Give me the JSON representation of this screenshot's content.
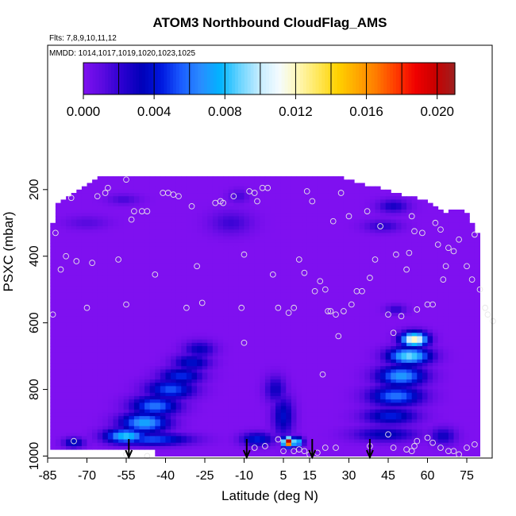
{
  "chart_data": {
    "type": "heatmap",
    "title": "ATOM3 Northbound CloudFlag_AMS",
    "subtitle_flights": "Flts: 7,8,9,10,11,12",
    "subtitle_dates": "MMDD: 1014,1017,1019,1020,1023,1025",
    "xlabel": "Latitude (deg N)",
    "ylabel": "PSXC (mbar)",
    "xlim": [
      -85,
      85
    ],
    "ylim": [
      1000,
      100
    ],
    "y_reversed": true,
    "x_ticks": [
      -85,
      -70,
      -55,
      -40,
      -25,
      -10,
      5,
      15,
      30,
      45,
      60,
      75
    ],
    "y_ticks": [
      200,
      400,
      600,
      800,
      1000
    ],
    "colorbar": {
      "range": [
        0.0,
        0.021
      ],
      "tick_values": [
        0.0,
        0.004,
        0.008,
        0.012,
        0.016,
        0.02
      ],
      "tick_labels": [
        "0.000",
        "0.004",
        "0.008",
        "0.012",
        "0.016",
        "0.020"
      ],
      "colors": [
        "#7f10f0",
        "#5a0ae0",
        "#2a00d0",
        "#0000b8",
        "#0018e0",
        "#1a5cff",
        "#2a8cff",
        "#00b4ff",
        "#6ad4ff",
        "#c4ecff",
        "#f4fbff",
        "#fff7b4",
        "#ffe75a",
        "#ffd200",
        "#ffa800",
        "#ff7a00",
        "#ff3a00",
        "#f00000",
        "#c80000",
        "#9e1f1f"
      ]
    },
    "background_value": 0.0,
    "coverage_columns": [
      {
        "lat": -84,
        "top": 330,
        "bottom": 575
      },
      {
        "lat": -81,
        "top": 240,
        "bottom": 575
      },
      {
        "lat": -76,
        "top": 220,
        "bottom": 575
      },
      {
        "lat": -66,
        "top": 165,
        "bottom": 575
      },
      {
        "lat": -40,
        "top": 165,
        "bottom": 575
      },
      {
        "lat": 0,
        "top": 165,
        "bottom": 975
      },
      {
        "lat": 18,
        "top": 165,
        "bottom": 975
      },
      {
        "lat": 28,
        "top": 165,
        "bottom": 975
      },
      {
        "lat": 52,
        "top": 220,
        "bottom": 975
      },
      {
        "lat": 60,
        "top": 230,
        "bottom": 975
      },
      {
        "lat": 66,
        "top": 270,
        "bottom": 975
      },
      {
        "lat": 74,
        "top": 255,
        "bottom": 975
      },
      {
        "lat": 80,
        "top": 345,
        "bottom": 975
      }
    ],
    "missing_region": {
      "lat_from": -84,
      "lat_to": -44,
      "pmin": 980,
      "pmax": 1000
    },
    "cloud_blobs": [
      {
        "lat": -55,
        "p": 940,
        "dlat": 8,
        "dp": 22,
        "value": 0.0085
      },
      {
        "lat": -48,
        "p": 900,
        "dlat": 9,
        "dp": 30,
        "value": 0.0075
      },
      {
        "lat": -44,
        "p": 850,
        "dlat": 9,
        "dp": 30,
        "value": 0.0062
      },
      {
        "lat": -38,
        "p": 800,
        "dlat": 9,
        "dp": 30,
        "value": 0.0055
      },
      {
        "lat": -34,
        "p": 760,
        "dlat": 8,
        "dp": 25,
        "value": 0.0048
      },
      {
        "lat": -30,
        "p": 720,
        "dlat": 7,
        "dp": 25,
        "value": 0.004
      },
      {
        "lat": -27,
        "p": 680,
        "dlat": 6,
        "dp": 25,
        "value": 0.0032
      },
      {
        "lat": -45,
        "p": 950,
        "dlat": 14,
        "dp": 18,
        "value": 0.0055
      },
      {
        "lat": -75,
        "p": 960,
        "dlat": 4,
        "dp": 15,
        "value": 0.004
      },
      {
        "lat": -5,
        "p": 950,
        "dlat": 6,
        "dp": 20,
        "value": 0.0045
      },
      {
        "lat": 5,
        "p": 880,
        "dlat": 4,
        "dp": 60,
        "value": 0.0038
      },
      {
        "lat": 2,
        "p": 800,
        "dlat": 4,
        "dp": 40,
        "value": 0.003
      },
      {
        "lat": 7,
        "p": 958,
        "dlat": 2.2,
        "dp": 14,
        "value": 0.021
      },
      {
        "lat": 10,
        "p": 958,
        "dlat": 2.5,
        "dp": 14,
        "value": 0.009
      },
      {
        "lat": 55,
        "p": 650,
        "dlat": 5,
        "dp": 22,
        "value": 0.0125
      },
      {
        "lat": 53,
        "p": 700,
        "dlat": 8,
        "dp": 25,
        "value": 0.0092
      },
      {
        "lat": 50,
        "p": 760,
        "dlat": 9,
        "dp": 30,
        "value": 0.0072
      },
      {
        "lat": 48,
        "p": 820,
        "dlat": 10,
        "dp": 30,
        "value": 0.0062
      },
      {
        "lat": 46,
        "p": 880,
        "dlat": 10,
        "dp": 25,
        "value": 0.0045
      },
      {
        "lat": 44,
        "p": 935,
        "dlat": 12,
        "dp": 22,
        "value": 0.0035
      },
      {
        "lat": 66,
        "p": 940,
        "dlat": 5,
        "dp": 25,
        "value": 0.003
      },
      {
        "lat": 48,
        "p": 560,
        "dlat": 4,
        "dp": 15,
        "value": 0.0022
      },
      {
        "lat": 47,
        "p": 250,
        "dlat": 6,
        "dp": 20,
        "value": 0.0028
      },
      {
        "lat": 43,
        "p": 310,
        "dlat": 7,
        "dp": 18,
        "value": 0.0022
      },
      {
        "lat": -15,
        "p": 300,
        "dlat": 8,
        "dp": 35,
        "value": 0.0018
      },
      {
        "lat": -12,
        "p": 220,
        "dlat": 4,
        "dp": 20,
        "value": 0.0016
      },
      {
        "lat": -56,
        "p": 230,
        "dlat": 6,
        "dp": 15,
        "value": 0.0016
      },
      {
        "lat": -70,
        "p": 300,
        "dlat": 8,
        "dp": 20,
        "value": 0.0012
      }
    ],
    "sample_points": [
      [
        -82,
        330
      ],
      [
        -80,
        440
      ],
      [
        -78,
        400
      ],
      [
        -76,
        225
      ],
      [
        -74,
        415
      ],
      [
        -70,
        555
      ],
      [
        -68,
        420
      ],
      [
        -66,
        220
      ],
      [
        -63,
        210
      ],
      [
        -62,
        195
      ],
      [
        -58,
        410
      ],
      [
        -55,
        170
      ],
      [
        -55,
        545
      ],
      [
        -53,
        290
      ],
      [
        -52,
        265
      ],
      [
        -49,
        265
      ],
      [
        -47,
        265
      ],
      [
        -44,
        455
      ],
      [
        -41,
        210
      ],
      [
        -39,
        210
      ],
      [
        -37,
        215
      ],
      [
        -35,
        220
      ],
      [
        -32,
        555
      ],
      [
        -30,
        250
      ],
      [
        -28,
        430
      ],
      [
        -26,
        540
      ],
      [
        -21,
        240
      ],
      [
        -19,
        235
      ],
      [
        -18,
        240
      ],
      [
        -14,
        220
      ],
      [
        -11,
        555
      ],
      [
        -10,
        395
      ],
      [
        -8,
        205
      ],
      [
        -6,
        210
      ],
      [
        -5,
        235
      ],
      [
        -3,
        195
      ],
      [
        -1,
        195
      ],
      [
        1,
        455
      ],
      [
        3,
        555
      ],
      [
        7,
        570
      ],
      [
        9,
        555
      ],
      [
        11,
        410
      ],
      [
        13,
        450
      ],
      [
        14,
        205
      ],
      [
        16,
        235
      ],
      [
        17,
        505
      ],
      [
        19,
        475
      ],
      [
        20,
        755
      ],
      [
        21,
        500
      ],
      [
        22,
        565
      ],
      [
        23,
        565
      ],
      [
        24,
        295
      ],
      [
        25,
        575
      ],
      [
        26,
        640
      ],
      [
        27,
        210
      ],
      [
        28,
        565
      ],
      [
        30,
        280
      ],
      [
        31,
        545
      ],
      [
        33,
        505
      ],
      [
        35,
        505
      ],
      [
        37,
        265
      ],
      [
        38,
        465
      ],
      [
        40,
        410
      ],
      [
        42,
        310
      ],
      [
        45,
        575
      ],
      [
        47,
        630
      ],
      [
        48,
        395
      ],
      [
        50,
        580
      ],
      [
        52,
        440
      ],
      [
        53,
        390
      ],
      [
        54,
        280
      ],
      [
        55,
        325
      ],
      [
        56,
        560
      ],
      [
        58,
        330
      ],
      [
        60,
        545
      ],
      [
        62,
        545
      ],
      [
        63,
        300
      ],
      [
        64,
        365
      ],
      [
        65,
        320
      ],
      [
        66,
        470
      ],
      [
        67,
        430
      ],
      [
        68,
        375
      ],
      [
        70,
        385
      ],
      [
        72,
        350
      ],
      [
        75,
        430
      ],
      [
        77,
        470
      ],
      [
        78,
        335
      ],
      [
        80,
        500
      ],
      [
        82,
        555
      ],
      [
        83,
        575
      ],
      [
        85,
        595
      ],
      [
        -83,
        575
      ],
      [
        -75,
        955
      ],
      [
        -6,
        975
      ],
      [
        -2,
        970
      ],
      [
        5,
        985
      ],
      [
        9,
        985
      ],
      [
        11,
        980
      ],
      [
        13,
        985
      ],
      [
        15,
        995
      ],
      [
        18,
        990
      ],
      [
        21,
        975
      ],
      [
        25,
        975
      ],
      [
        38,
        970
      ],
      [
        45,
        935
      ],
      [
        47,
        975
      ],
      [
        52,
        980
      ],
      [
        54,
        985
      ],
      [
        55,
        970
      ],
      [
        56,
        955
      ],
      [
        60,
        945
      ],
      [
        62,
        960
      ],
      [
        65,
        975
      ],
      [
        68,
        985
      ],
      [
        70,
        985
      ],
      [
        72,
        995
      ],
      [
        75,
        975
      ],
      [
        78,
        965
      ],
      [
        -55,
        995
      ],
      [
        -47,
        1000
      ],
      [
        -10,
        660
      ],
      [
        3,
        950
      ]
    ],
    "arrows_lat": [
      -54,
      -9,
      16,
      38
    ]
  }
}
